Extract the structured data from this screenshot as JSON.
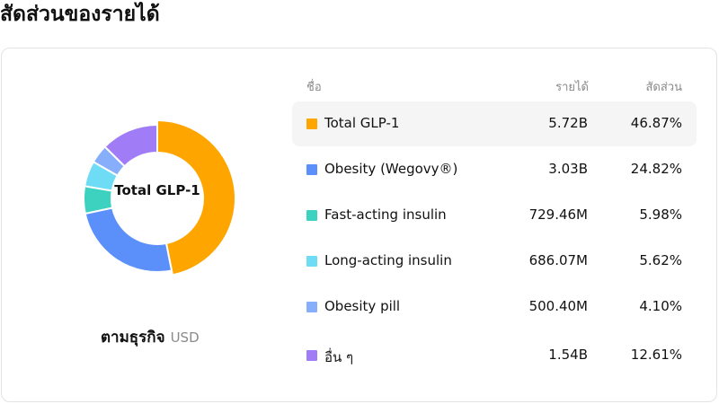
{
  "page": {
    "title": "สัดส่วนของรายได้"
  },
  "table": {
    "col_name": "ชื่อ",
    "col_revenue": "รายได้",
    "col_share": "สัดส่วน"
  },
  "donut": {
    "center_label": "Total GLP-1"
  },
  "footer": {
    "by_label": "ตามธุรกิจ",
    "currency": "USD"
  },
  "chart_data": {
    "type": "pie",
    "title": "สัดส่วนของรายได้",
    "categories": [
      "Total GLP-1",
      "Obesity (Wegovy®)",
      "Fast-acting insulin",
      "Long-acting insulin",
      "Obesity pill",
      "อื่น ๆ"
    ],
    "revenue_labels": [
      "5.72B",
      "3.03B",
      "729.46M",
      "686.07M",
      "500.40M",
      "1.54B"
    ],
    "share_labels": [
      "46.87%",
      "24.82%",
      "5.98%",
      "5.62%",
      "4.10%",
      "12.61%"
    ],
    "values": [
      46.87,
      24.82,
      5.98,
      5.62,
      4.1,
      12.61
    ],
    "colors": [
      "#FFA500",
      "#5B8FF9",
      "#3DD1C0",
      "#6FDCF5",
      "#87AEFA",
      "#A07CF7"
    ],
    "highlighted_index": 0
  }
}
